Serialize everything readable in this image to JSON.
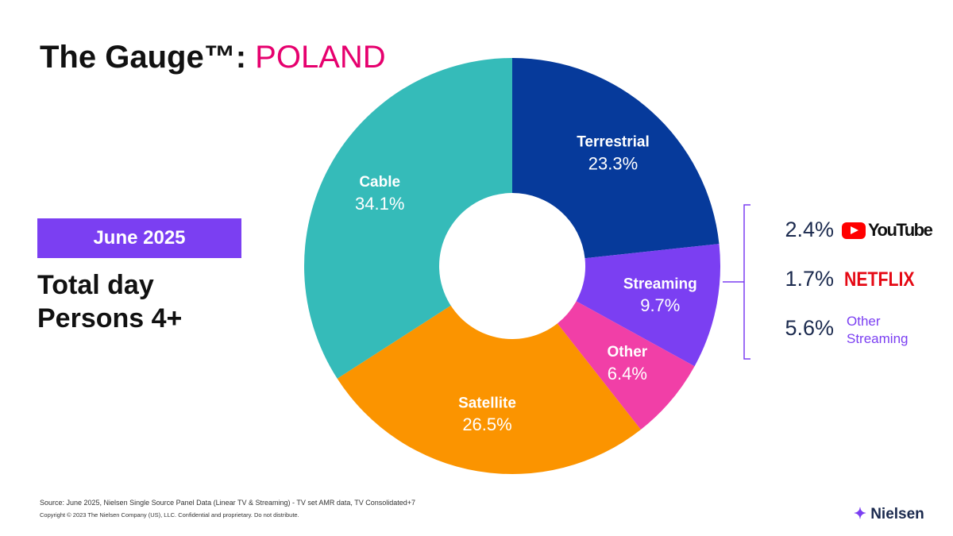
{
  "header": {
    "title": "The Gauge™:",
    "country": "POLAND"
  },
  "badge": "June 2025",
  "subtitle": [
    "Total day",
    "Persons 4+"
  ],
  "chart_data": {
    "type": "donut",
    "categories": [
      "Terrestrial",
      "Streaming",
      "Other",
      "Satellite",
      "Cable"
    ],
    "values": [
      23.3,
      9.7,
      6.4,
      26.5,
      34.1
    ],
    "value_labels": [
      "23.3%",
      "9.7%",
      "6.4%",
      "26.5%",
      "34.1%"
    ],
    "colors": [
      "#063a9b",
      "#7b3ff2",
      "#f13fa7",
      "#fb9400",
      "#35bbb9"
    ]
  },
  "breakdown": {
    "names": [
      "YouTube",
      "NETFLIX",
      "Other Streaming"
    ],
    "values": [
      2.4,
      1.7,
      5.6
    ],
    "value_labels": [
      "2.4%",
      "1.7%",
      "5.6%"
    ]
  },
  "footer": {
    "source": "Source: June 2025, Nielsen Single Source Panel Data (Linear TV & Streaming) - TV set AMR data, TV Consolidated+7",
    "copyright": "Copyright © 2023 The Nielsen Company (US), LLC. Confidential and proprietary. Do not distribute.",
    "brand": "Nielsen"
  }
}
